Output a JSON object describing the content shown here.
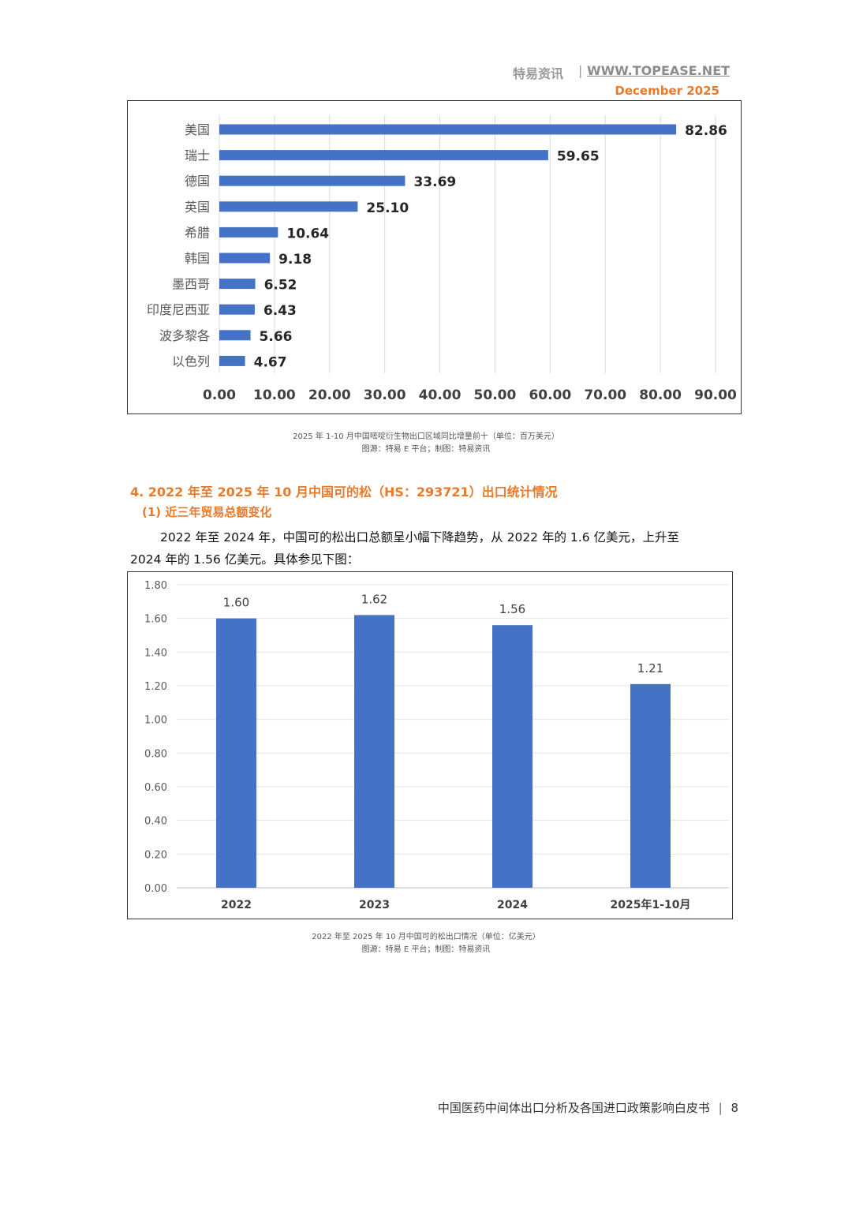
{
  "header": {
    "brand": "特易资讯",
    "separator": "|",
    "site": "WWW.TOPEASE.NET",
    "date": "December 2025"
  },
  "chart1_caption": {
    "line1": "2025 年 1-10 月中国嘧啶衍生物出口区域同比增量前十（单位：百万美元）",
    "line2": "图源：特易 E 平台；制图：特易资讯"
  },
  "section": {
    "title": "4. 2022 年至 2025 年 10 月中国可的松（HS：293721）出口统计情况",
    "subtitle": "(1) 近三年贸易总额变化",
    "paragraph": "2022 年至 2024 年，中国可的松出口总额呈小幅下降趋势，从 2022 年的 1.6 亿美元，上升至 2024 年的 1.56 亿美元。具体参见下图："
  },
  "chart2_caption": {
    "line1": "2022 年至 2025 年 10 月中国可的松出口情况（单位：亿美元）",
    "line2": "图源：特易 E 平台；制图：特易资讯"
  },
  "footer": {
    "title": "中国医药中间体出口分析及各国进口政策影响白皮书",
    "separator": "|",
    "page": "8"
  },
  "colors": {
    "bar": "#4472c4",
    "accent": "#e87a2a"
  },
  "chart_data": [
    {
      "type": "bar",
      "orientation": "horizontal",
      "categories": [
        "美国",
        "瑞士",
        "德国",
        "英国",
        "希腊",
        "韩国",
        "墨西哥",
        "印度尼西亚",
        "波多黎各",
        "以色列"
      ],
      "values": [
        82.86,
        59.65,
        33.69,
        25.1,
        10.64,
        9.18,
        6.52,
        6.43,
        5.66,
        4.67
      ],
      "value_labels": [
        "82.86",
        "59.65",
        "33.69",
        "25.10",
        "10.64",
        "9.18",
        "6.52",
        "6.43",
        "5.66",
        "4.67"
      ],
      "xlim": [
        0,
        90
      ],
      "ticks": [
        "0.00",
        "10.00",
        "20.00",
        "30.00",
        "40.00",
        "50.00",
        "60.00",
        "70.00",
        "80.00",
        "90.00"
      ],
      "grid": true
    },
    {
      "type": "bar",
      "orientation": "vertical",
      "categories": [
        "2022",
        "2023",
        "2024",
        "2025年1-10月"
      ],
      "values": [
        1.6,
        1.62,
        1.56,
        1.21
      ],
      "value_labels": [
        "1.60",
        "1.62",
        "1.56",
        "1.21"
      ],
      "ylim": [
        0,
        1.8
      ],
      "ticks": [
        "0.00",
        "0.20",
        "0.40",
        "0.60",
        "0.80",
        "1.00",
        "1.20",
        "1.40",
        "1.60",
        "1.80"
      ],
      "grid": true
    }
  ]
}
